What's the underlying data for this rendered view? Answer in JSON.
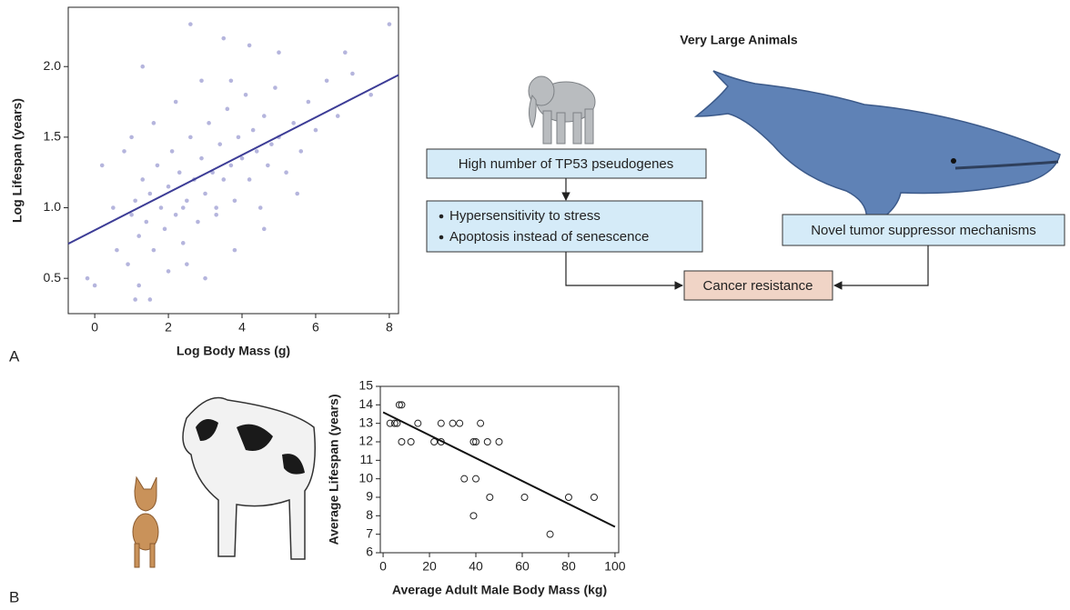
{
  "chart_data": [
    {
      "type": "scatter",
      "xlabel": "Log Body Mass (g)",
      "ylabel": "Log Lifespan (years)",
      "xlim": [
        -0.72,
        8.25
      ],
      "ylim": [
        0.25,
        2.42
      ],
      "xticks": [
        0,
        2,
        4,
        6,
        8
      ],
      "yticks": [
        0.5,
        {
          "value": 1,
          "label": "1.0"
        },
        1.5,
        {
          "value": 2,
          "label": "2.0"
        }
      ],
      "color": "#5a5ab4",
      "x": [
        1.0,
        1.1,
        1.2,
        1.3,
        1.4,
        1.5,
        1.6,
        1.7,
        1.8,
        1.9,
        2.0,
        2.1,
        2.2,
        2.3,
        2.4,
        2.5,
        2.6,
        2.7,
        2.8,
        2.9,
        3.0,
        3.1,
        3.2,
        3.3,
        3.4,
        3.5,
        3.6,
        3.7,
        3.8,
        3.9,
        4.0,
        4.1,
        4.2,
        4.3,
        4.4,
        4.5,
        4.6,
        4.7,
        4.8,
        4.9,
        5.0,
        5.2,
        5.4,
        5.6,
        5.8,
        6.0,
        6.3,
        6.6,
        7.0,
        7.5,
        8.0,
        0.9,
        1.2,
        1.5,
        2.0,
        2.5,
        0.5,
        0.2,
        -0.2,
        0.8,
        1.3,
        2.6,
        3.5,
        4.2,
        5.0,
        6.8,
        3.0,
        3.8,
        1.0,
        1.6,
        2.2,
        2.9,
        3.3,
        4.6,
        5.5,
        0.0,
        0.6,
        1.1,
        2.4,
        3.7
      ],
      "values": [
        0.95,
        1.05,
        0.8,
        1.2,
        0.9,
        1.1,
        0.7,
        1.3,
        1.0,
        0.85,
        1.15,
        1.4,
        0.95,
        1.25,
        0.75,
        1.05,
        1.5,
        1.2,
        0.9,
        1.35,
        1.1,
        1.6,
        1.25,
        0.95,
        1.45,
        1.2,
        1.7,
        1.3,
        1.05,
        1.5,
        1.35,
        1.8,
        1.2,
        1.55,
        1.4,
        1.0,
        1.65,
        1.3,
        1.45,
        1.85,
        1.5,
        1.25,
        1.6,
        1.4,
        1.75,
        1.55,
        1.9,
        1.65,
        1.95,
        1.8,
        2.3,
        0.6,
        0.45,
        0.35,
        0.55,
        0.6,
        1.0,
        1.3,
        0.5,
        1.4,
        2.0,
        2.3,
        2.2,
        2.15,
        2.1,
        2.1,
        0.5,
        0.7,
        1.5,
        1.6,
        1.75,
        1.9,
        1.0,
        0.85,
        1.1,
        0.45,
        0.7,
        0.35,
        1.0,
        1.9
      ],
      "trendline": {
        "x": [
          -0.72,
          8.25
        ],
        "y": [
          0.745,
          1.94
        ],
        "color": "#3c3c96"
      }
    },
    {
      "type": "scatter",
      "xlabel": "Average Adult Male Body Mass (kg)",
      "ylabel": "Average Lifespan (years)",
      "xlim": [
        -1.2,
        101.6
      ],
      "ylim": [
        6,
        15
      ],
      "xticks": [
        0,
        20,
        40,
        60,
        80,
        100
      ],
      "yticks": [
        6,
        7,
        8,
        9,
        10,
        11,
        12,
        13,
        14,
        15
      ],
      "color": "#222222",
      "x": [
        3,
        5,
        6,
        7,
        8,
        8,
        12,
        15,
        22,
        25,
        25,
        30,
        33,
        35,
        39,
        40,
        40,
        39,
        42,
        45,
        46,
        50,
        61,
        72,
        80,
        91
      ],
      "values": [
        13,
        13,
        13,
        14,
        14,
        12,
        12,
        13,
        12,
        12,
        13,
        13,
        13,
        10,
        12,
        12,
        10,
        8,
        13,
        12,
        9,
        12,
        9,
        7,
        9,
        9
      ],
      "trendline": {
        "x": [
          0,
          100
        ],
        "y": [
          13.6,
          7.4
        ],
        "color": "#111111"
      }
    }
  ],
  "panel_labels": [
    "A",
    "B"
  ],
  "diagram": {
    "title": "Very Large Animals",
    "pseudogenes": "High number of TP53 pseudogenes",
    "effects": [
      "Hypersensitivity to stress",
      "Apoptosis instead of senescence"
    ],
    "novel": "Novel tumor suppressor mechanisms",
    "outcome": "Cancer resistance"
  }
}
